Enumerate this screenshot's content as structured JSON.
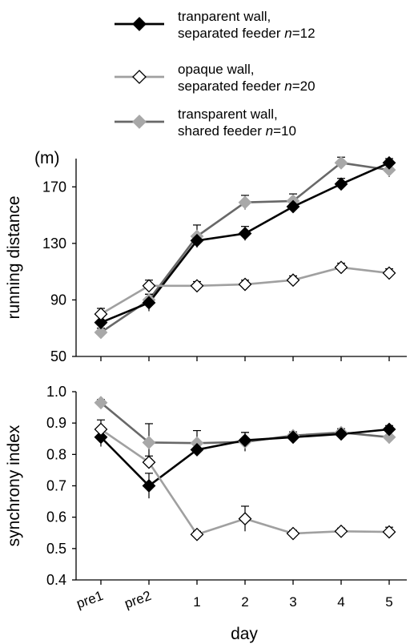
{
  "chart_data": [
    {
      "type": "line",
      "ylabel": "running distance",
      "yunit": "(m)",
      "ylim": [
        50,
        190
      ],
      "yticks": [
        50,
        90,
        130,
        170
      ],
      "x": [
        "pre1",
        "pre2",
        "1",
        "2",
        "3",
        "4",
        "5"
      ],
      "series": [
        {
          "name_parts": [
            "tranparent wall,",
            "separated feeder",
            "n",
            "=12"
          ],
          "color": "#000000",
          "marker": "filled-diamond",
          "line_color": "#000000",
          "values": [
            74,
            88,
            132,
            137,
            156,
            172,
            187
          ],
          "errors": [
            5,
            6,
            4,
            5,
            4,
            4,
            3
          ]
        },
        {
          "name_parts": [
            "opaque wall,",
            "separated feeder",
            "n",
            "=20"
          ],
          "color": "#a0a0a0",
          "marker": "open-diamond",
          "line_color": "#a0a0a0",
          "values": [
            80,
            100,
            100,
            101,
            104,
            113,
            109
          ],
          "errors": [
            4,
            4,
            3,
            3,
            3,
            3,
            3
          ]
        },
        {
          "name_parts": [
            "transparent wall,",
            "shared feeder",
            "n",
            "=10"
          ],
          "color": "#a8a8a8",
          "marker": "filled-diamond-gray",
          "line_color": "#686868",
          "values": [
            67,
            90,
            135,
            159,
            160,
            187,
            182
          ],
          "errors": [
            3,
            4,
            8,
            5,
            5,
            4,
            5
          ]
        }
      ]
    },
    {
      "type": "line",
      "ylabel": "synchrony index",
      "xlabel": "day",
      "ylim": [
        0.4,
        1.0
      ],
      "yticks": [
        "0.4",
        "0.5",
        "0.6",
        "0.7",
        "0.8",
        "0.9",
        "1.0"
      ],
      "x": [
        "pre1",
        "pre2",
        "1",
        "2",
        "3",
        "4",
        "5"
      ],
      "series": [
        {
          "color": "#000000",
          "marker": "filled-diamond",
          "line_color": "#000000",
          "values": [
            0.855,
            0.7,
            0.815,
            0.845,
            0.855,
            0.865,
            0.88
          ],
          "errors": [
            0.03,
            0.04,
            0.02,
            0.025,
            0.01,
            0.01,
            0.012
          ]
        },
        {
          "color": "#a0a0a0",
          "marker": "open-diamond",
          "line_color": "#a0a0a0",
          "values": [
            0.88,
            0.775,
            0.545,
            0.595,
            0.548,
            0.555,
            0.553
          ],
          "errors": [
            0.03,
            0.02,
            0.01,
            0.04,
            0.01,
            0.01,
            0.015
          ]
        },
        {
          "color": "#a8a8a8",
          "marker": "filled-diamond-gray",
          "line_color": "#686868",
          "values": [
            0.965,
            0.838,
            0.836,
            0.84,
            0.86,
            0.87,
            0.855
          ],
          "errors": [
            0.01,
            0.06,
            0.04,
            0.03,
            0.012,
            0.012,
            0.02
          ]
        }
      ]
    }
  ]
}
